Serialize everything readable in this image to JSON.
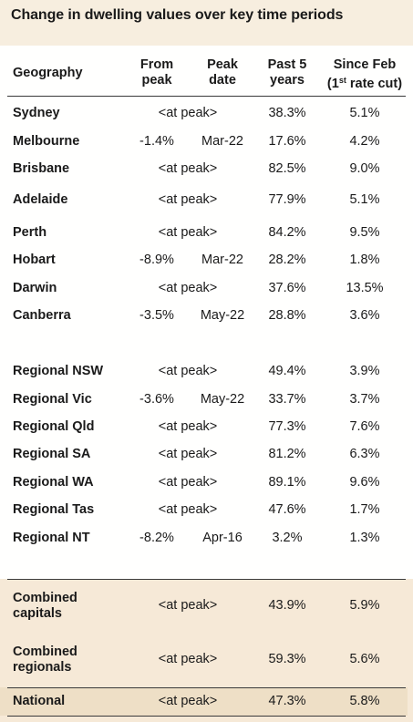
{
  "title": "Change in dwelling values over key time periods",
  "headers": {
    "geography": "Geography",
    "from_peak_1": "From",
    "from_peak_2": "peak",
    "peak_date_1": "Peak",
    "peak_date_2": "date",
    "past5_1": "Past 5",
    "past5_2": "years",
    "since_feb_1": "Since Feb",
    "since_feb_2a": "(1",
    "since_feb_sup": "st",
    "since_feb_2b": " rate cut)"
  },
  "capitals": [
    {
      "name": "Sydney",
      "from_peak": "<at peak>",
      "peak_date": "",
      "past5": "38.3%",
      "since_feb": "5.1%"
    },
    {
      "name": "Melbourne",
      "from_peak": "-1.4%",
      "peak_date": "Mar-22",
      "past5": "17.6%",
      "since_feb": "4.2%"
    },
    {
      "name": "Brisbane",
      "from_peak": "<at peak>",
      "peak_date": "",
      "past5": "82.5%",
      "since_feb": "9.0%"
    },
    {
      "name": "Adelaide",
      "from_peak": "<at peak>",
      "peak_date": "",
      "past5": "77.9%",
      "since_feb": "5.1%"
    },
    {
      "name": "Perth",
      "from_peak": "<at peak>",
      "peak_date": "",
      "past5": "84.2%",
      "since_feb": "9.5%"
    },
    {
      "name": "Hobart",
      "from_peak": "-8.9%",
      "peak_date": "Mar-22",
      "past5": "28.2%",
      "since_feb": "1.8%"
    },
    {
      "name": "Darwin",
      "from_peak": "<at peak>",
      "peak_date": "",
      "past5": "37.6%",
      "since_feb": "13.5%"
    },
    {
      "name": "Canberra",
      "from_peak": "-3.5%",
      "peak_date": "May-22",
      "past5": "28.8%",
      "since_feb": "3.6%"
    }
  ],
  "regionals": [
    {
      "name": "Regional NSW",
      "from_peak": "<at peak>",
      "peak_date": "",
      "past5": "49.4%",
      "since_feb": "3.9%"
    },
    {
      "name": "Regional Vic",
      "from_peak": "-3.6%",
      "peak_date": "May-22",
      "past5": "33.7%",
      "since_feb": "3.7%"
    },
    {
      "name": "Regional Qld",
      "from_peak": "<at peak>",
      "peak_date": "",
      "past5": "77.3%",
      "since_feb": "7.6%"
    },
    {
      "name": "Regional SA",
      "from_peak": "<at peak>",
      "peak_date": "",
      "past5": "81.2%",
      "since_feb": "6.3%"
    },
    {
      "name": "Regional WA",
      "from_peak": "<at peak>",
      "peak_date": "",
      "past5": "89.1%",
      "since_feb": "9.6%"
    },
    {
      "name": "Regional Tas",
      "from_peak": "<at peak>",
      "peak_date": "",
      "past5": "47.6%",
      "since_feb": "1.7%"
    },
    {
      "name": "Regional NT",
      "from_peak": "-8.2%",
      "peak_date": "Apr-16",
      "past5": "3.2%",
      "since_feb": "1.3%"
    }
  ],
  "combined": [
    {
      "name_1": "Combined",
      "name_2": "capitals",
      "from_peak": "<at peak>",
      "past5": "43.9%",
      "since_feb": "5.9%"
    },
    {
      "name_1": "Combined",
      "name_2": "regionals",
      "from_peak": "<at peak>",
      "past5": "59.3%",
      "since_feb": "5.6%"
    }
  ],
  "national": {
    "name": "National",
    "from_peak": "<at peak>",
    "past5": "47.3%",
    "since_feb": "5.8%"
  },
  "colors": {
    "page_background": "#f7eedf",
    "panel": "#fffffe",
    "combined_tint": "#f6e9d7",
    "national_band": "#eedfc6",
    "text": "#1a1a1a"
  }
}
